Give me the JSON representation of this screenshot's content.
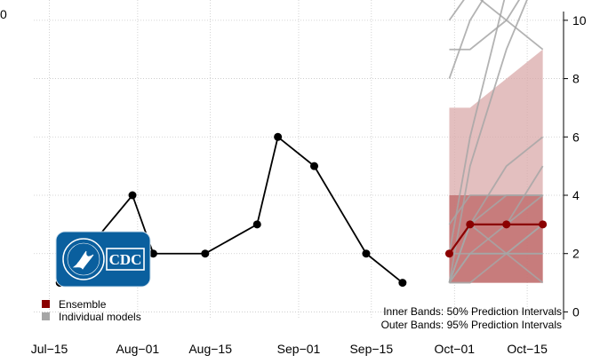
{
  "chart_data": {
    "type": "line",
    "title": "",
    "xlabel": "",
    "ylabel": "",
    "x_ticks": [
      "Jul−15",
      "Aug−01",
      "Aug−15",
      "Sep−01",
      "Sep−15",
      "Oct−01",
      "Oct−15"
    ],
    "x_tick_dates": [
      "2023-07-15",
      "2023-08-01",
      "2023-08-15",
      "2023-09-01",
      "2023-09-15",
      "2023-10-01",
      "2023-10-15"
    ],
    "xlim": [
      "2023-07-12",
      "2023-10-22"
    ],
    "y_ticks": [
      0,
      2,
      4,
      6,
      8,
      10
    ],
    "ylim": [
      -0.2,
      10.3
    ],
    "left_edge_tick_label": "0",
    "grid": true,
    "observed": {
      "dates": [
        "2023-07-17",
        "2023-07-31",
        "2023-08-04",
        "2023-08-14",
        "2023-08-24",
        "2023-08-28",
        "2023-09-04",
        "2023-09-14",
        "2023-09-21"
      ],
      "values": [
        1,
        4,
        2,
        2,
        3,
        6,
        5,
        2,
        1
      ],
      "color": "#000000"
    },
    "ensemble": {
      "dates": [
        "2023-09-30",
        "2023-10-04",
        "2023-10-11",
        "2023-10-18"
      ],
      "median": [
        2,
        3,
        3,
        3
      ],
      "inner_lower": [
        1,
        1,
        1,
        1
      ],
      "inner_upper": [
        4,
        4,
        4,
        4
      ],
      "outer_lower": [
        1,
        1,
        1,
        1
      ],
      "outer_upper": [
        7,
        7,
        8,
        9
      ],
      "color": "#8b0000",
      "inner_band_color": "#c27070",
      "outer_band_color": "#d9a9a9"
    },
    "individual_models": {
      "dates": [
        "2023-09-30",
        "2023-10-04",
        "2023-10-11",
        "2023-10-18"
      ],
      "color": "#a6a6a6",
      "series": [
        [
          1,
          3,
          5,
          6
        ],
        [
          1,
          2,
          3,
          5
        ],
        [
          1,
          3,
          4,
          4
        ],
        [
          1,
          1,
          2,
          3
        ],
        [
          2,
          3,
          3,
          4
        ],
        [
          3,
          4,
          4,
          4
        ],
        [
          1,
          2,
          2,
          2
        ],
        [
          1,
          2,
          2,
          1
        ],
        [
          2,
          2,
          2,
          2
        ],
        [
          1,
          3,
          2,
          3
        ],
        [
          8,
          10,
          12,
          14
        ],
        [
          9,
          9,
          10,
          12
        ],
        [
          10,
          11,
          10,
          9
        ],
        [
          1,
          5,
          9,
          12
        ],
        [
          2,
          6,
          11,
          15
        ]
      ]
    },
    "legend": {
      "position": "bottom-left",
      "items": [
        {
          "label": "Ensemble",
          "color": "#8b0000"
        },
        {
          "label": "Individual models",
          "color": "#a6a6a6"
        }
      ]
    },
    "annotations": [
      "Inner Bands: 50% Prediction Intervals",
      "Outer Bands: 95% Prediction Intervals"
    ]
  },
  "logo": {
    "name": "CDC",
    "text": "CDC",
    "background": "#0a5f9e",
    "seal_text": "DEPARTMENT OF HEALTH & HUMAN SERVICES USA"
  }
}
